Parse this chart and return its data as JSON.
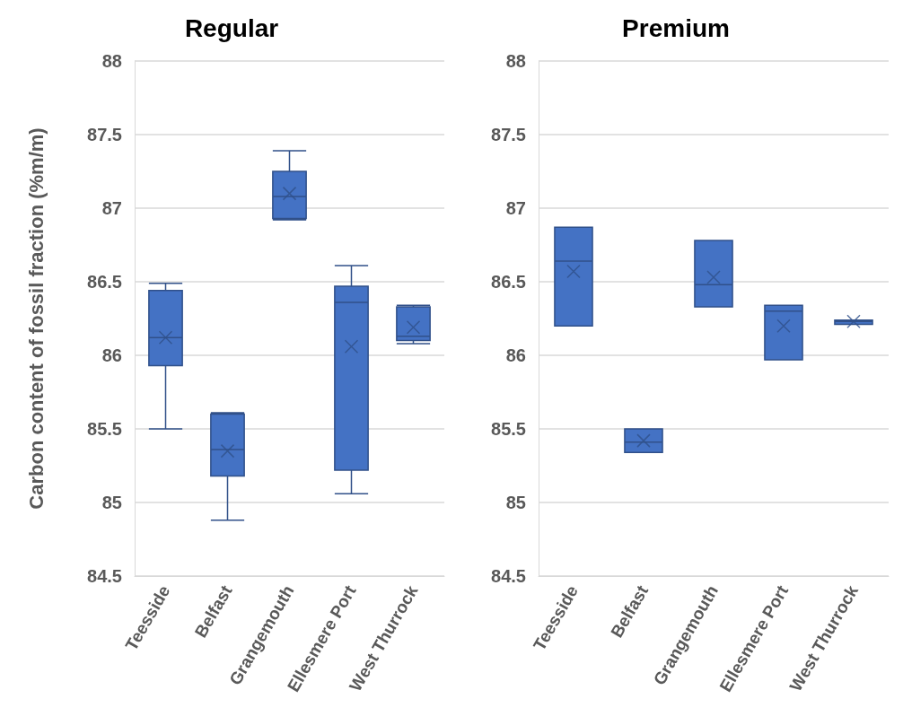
{
  "chart_data": [
    {
      "type": "box",
      "title": "Regular",
      "ylabel": "Carbon content of fossil fraction (%m/m)",
      "categories": [
        "Teesside",
        "Belfast",
        "Grangemouth",
        "Ellesmere Port",
        "West Thurrock"
      ],
      "color": "#4472c4",
      "boxes": [
        {
          "low": 85.5,
          "q1": 85.93,
          "median": 86.12,
          "q3": 86.44,
          "high": 86.49,
          "mean": 86.12
        },
        {
          "low": 84.88,
          "q1": 85.18,
          "median": 85.36,
          "q3": 85.6,
          "high": 85.61,
          "mean": 85.35
        },
        {
          "low": 86.92,
          "q1": 86.93,
          "median": 87.08,
          "q3": 87.25,
          "high": 87.39,
          "mean": 87.1
        },
        {
          "low": 85.06,
          "q1": 85.22,
          "median": 86.36,
          "q3": 86.47,
          "high": 86.61,
          "mean": 86.06
        },
        {
          "low": 86.08,
          "q1": 86.1,
          "median": 86.13,
          "q3": 86.33,
          "high": 86.34,
          "mean": 86.19
        }
      ],
      "ylim": [
        84.5,
        88
      ],
      "yticks": [
        84.5,
        85,
        85.5,
        86,
        86.5,
        87,
        87.5,
        88
      ],
      "grid": "y",
      "marker": "cross"
    },
    {
      "type": "box",
      "title": "Premium",
      "categories": [
        "Teesside",
        "Belfast",
        "Grangemouth",
        "Ellesmere Port",
        "West Thurrock"
      ],
      "color": "#4472c4",
      "boxes": [
        {
          "low": 86.2,
          "q1": 86.2,
          "median": 86.64,
          "q3": 86.87,
          "high": 86.87,
          "mean": 86.57
        },
        {
          "low": 85.34,
          "q1": 85.34,
          "median": 85.41,
          "q3": 85.5,
          "high": 85.5,
          "mean": 85.42
        },
        {
          "low": 86.33,
          "q1": 86.33,
          "median": 86.48,
          "q3": 86.78,
          "high": 86.78,
          "mean": 86.53
        },
        {
          "low": 85.97,
          "q1": 85.97,
          "median": 86.3,
          "q3": 86.34,
          "high": 86.34,
          "mean": 86.2
        },
        {
          "low": 86.21,
          "q1": 86.21,
          "median": 86.23,
          "q3": 86.24,
          "high": 86.24,
          "mean": 86.23
        }
      ],
      "ylim": [
        84.5,
        88
      ],
      "yticks": [
        84.5,
        85,
        85.5,
        86,
        86.5,
        87,
        87.5,
        88
      ],
      "grid": "y",
      "marker": "cross"
    }
  ]
}
